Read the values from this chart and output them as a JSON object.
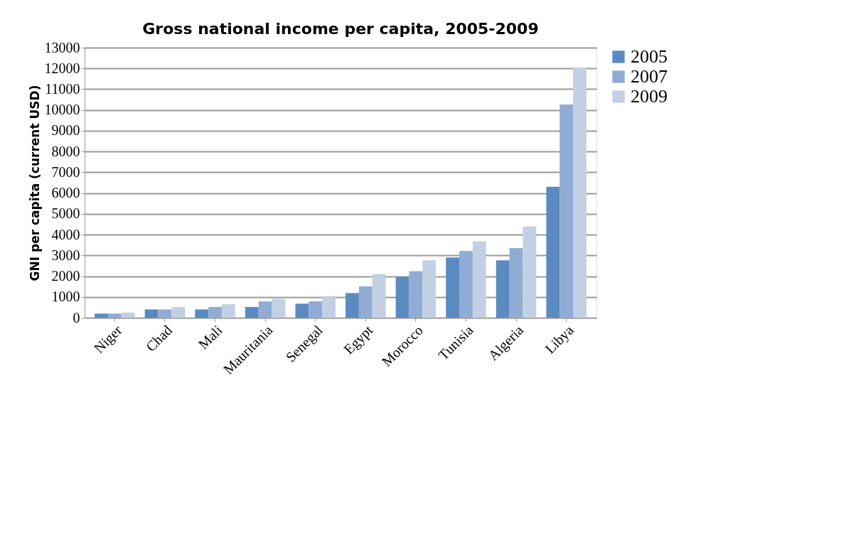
{
  "chart_data": {
    "type": "bar",
    "title": "Gross national income per capita, 2005-2009",
    "ylabel": "GNI per capita (current USD)",
    "categories": [
      "Niger",
      "Chad",
      "Mali",
      "Mauritania",
      "Senegal",
      "Egypt",
      "Morocco",
      "Tunisia",
      "Algeria",
      "Libya"
    ],
    "series": [
      {
        "name": "2005",
        "color": "#5a8ac0",
        "values": [
          200,
          400,
          400,
          520,
          680,
          1190,
          1970,
          2900,
          2760,
          6300
        ]
      },
      {
        "name": "2007",
        "color": "#90acd4",
        "values": [
          200,
          400,
          520,
          790,
          790,
          1510,
          2240,
          3220,
          3350,
          10260
        ]
      },
      {
        "name": "2009",
        "color": "#c3d0e4",
        "values": [
          250,
          520,
          650,
          910,
          1040,
          2100,
          2760,
          3690,
          4400,
          12020
        ]
      }
    ],
    "ylim": [
      0,
      13000
    ],
    "yticks": [
      0,
      1000,
      2000,
      3000,
      4000,
      5000,
      6000,
      7000,
      8000,
      9000,
      10000,
      11000,
      12000,
      13000
    ],
    "grid": "y",
    "legend": "right"
  }
}
